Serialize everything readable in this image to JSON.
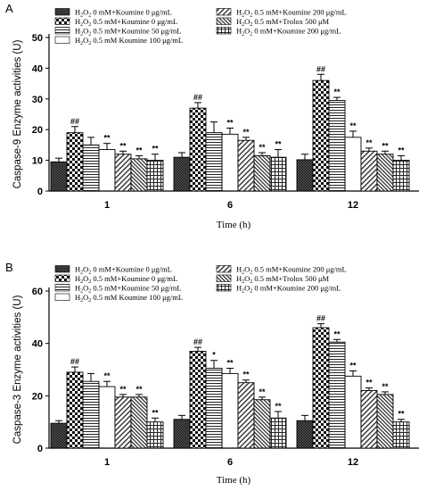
{
  "chart_data": [
    {
      "panel_label": "A",
      "type": "bar",
      "xlabel": "Time (h)",
      "ylabel": "Caspase-9 Enzyme activities (U)",
      "ylim": [
        0,
        50
      ],
      "yticks": [
        "0",
        "10",
        "20",
        "30",
        "40",
        "50"
      ],
      "categories": [
        "1",
        "6",
        "12"
      ],
      "series": [
        {
          "name": "H2O2 0 mM+Koumine 0 μg/mL",
          "pattern": "dots-dark",
          "values": [
            9.5,
            11.0,
            10.2
          ],
          "errors": [
            1.2,
            1.5,
            1.8
          ],
          "marks": [
            "",
            "",
            ""
          ]
        },
        {
          "name": "H2O2 0.5 mM+Koumine 0 μg/mL",
          "pattern": "checker",
          "values": [
            19.0,
            27.0,
            36.0
          ],
          "errors": [
            2.0,
            1.8,
            2.0
          ],
          "marks": [
            "##",
            "##",
            "##"
          ]
        },
        {
          "name": "H2O2 0.5 mM+Koumine 50 μg/mL",
          "pattern": "hlines",
          "values": [
            15.0,
            19.0,
            29.5
          ],
          "errors": [
            2.5,
            3.5,
            1.0
          ],
          "marks": [
            "",
            "",
            "**"
          ]
        },
        {
          "name": "H2O2 0.5 mM Koumine 100 μg/mL",
          "pattern": "white",
          "values": [
            13.5,
            18.5,
            17.5
          ],
          "errors": [
            2.0,
            2.0,
            2.0
          ],
          "marks": [
            "**",
            "**",
            "**"
          ]
        },
        {
          "name": "H2O2 0.5 mM+Koumine 200 μg/mL",
          "pattern": "diag",
          "values": [
            12.0,
            16.5,
            13.0
          ],
          "errors": [
            1.0,
            1.0,
            1.0
          ],
          "marks": [
            "**",
            "**",
            "**"
          ]
        },
        {
          "name": "H2O2 0.5 mM+Trolox 500 μM",
          "pattern": "diag-dense",
          "values": [
            10.5,
            11.5,
            12.0
          ],
          "errors": [
            1.0,
            1.0,
            1.0
          ],
          "marks": [
            "**",
            "**",
            "**"
          ]
        },
        {
          "name": "H2O2 0 mM+Koumine 200 μg/mL",
          "pattern": "grid",
          "values": [
            10.0,
            11.0,
            10.0
          ],
          "errors": [
            2.0,
            2.5,
            1.5
          ],
          "marks": [
            "**",
            "**",
            "**"
          ]
        }
      ]
    },
    {
      "panel_label": "B",
      "type": "bar",
      "xlabel": "Time (h)",
      "ylabel": "Caspase-3 Enzyme activities (U)",
      "ylim": [
        0,
        60
      ],
      "yticks": [
        "0",
        "20",
        "40",
        "60"
      ],
      "categories": [
        "1",
        "6",
        "12"
      ],
      "series": [
        {
          "name": "H2O2 0 mM+Koumine 0 μg/mL",
          "pattern": "dots-dark",
          "values": [
            9.5,
            11.0,
            10.5
          ],
          "errors": [
            1.0,
            1.5,
            2.0
          ],
          "marks": [
            "",
            "",
            ""
          ]
        },
        {
          "name": "H2O2 0.5 mM+Koumine 0 μg/mL",
          "pattern": "checker",
          "values": [
            29.0,
            37.0,
            46.0
          ],
          "errors": [
            2.0,
            1.5,
            1.5
          ],
          "marks": [
            "##",
            "##",
            "##"
          ]
        },
        {
          "name": "H2O2 0.5 mM+Koumine 50 μg/mL",
          "pattern": "hlines",
          "values": [
            25.5,
            30.5,
            40.5
          ],
          "errors": [
            3.0,
            3.0,
            1.0
          ],
          "marks": [
            "",
            "*",
            "**"
          ]
        },
        {
          "name": "H2O2 0.5 mM Koumine 100 μg/mL",
          "pattern": "white",
          "values": [
            23.5,
            28.5,
            27.5
          ],
          "errors": [
            2.0,
            2.0,
            2.0
          ],
          "marks": [
            "**",
            "**",
            "**"
          ]
        },
        {
          "name": "H2O2 0.5 mM+Koumine 200 μg/mL",
          "pattern": "diag",
          "values": [
            19.5,
            25.0,
            22.0
          ],
          "errors": [
            1.0,
            1.0,
            1.0
          ],
          "marks": [
            "**",
            "**",
            "**"
          ]
        },
        {
          "name": "H2O2 0.5 mM+Trolox 500 μM",
          "pattern": "diag-dense",
          "values": [
            19.5,
            18.5,
            20.5
          ],
          "errors": [
            1.0,
            1.0,
            1.0
          ],
          "marks": [
            "**",
            "**",
            "**"
          ]
        },
        {
          "name": "H2O2 0 mM+Koumine 200 μg/mL",
          "pattern": "grid",
          "values": [
            10.0,
            11.5,
            10.0
          ],
          "errors": [
            1.5,
            2.5,
            1.0
          ],
          "marks": [
            "**",
            "**",
            "**"
          ]
        }
      ]
    }
  ]
}
